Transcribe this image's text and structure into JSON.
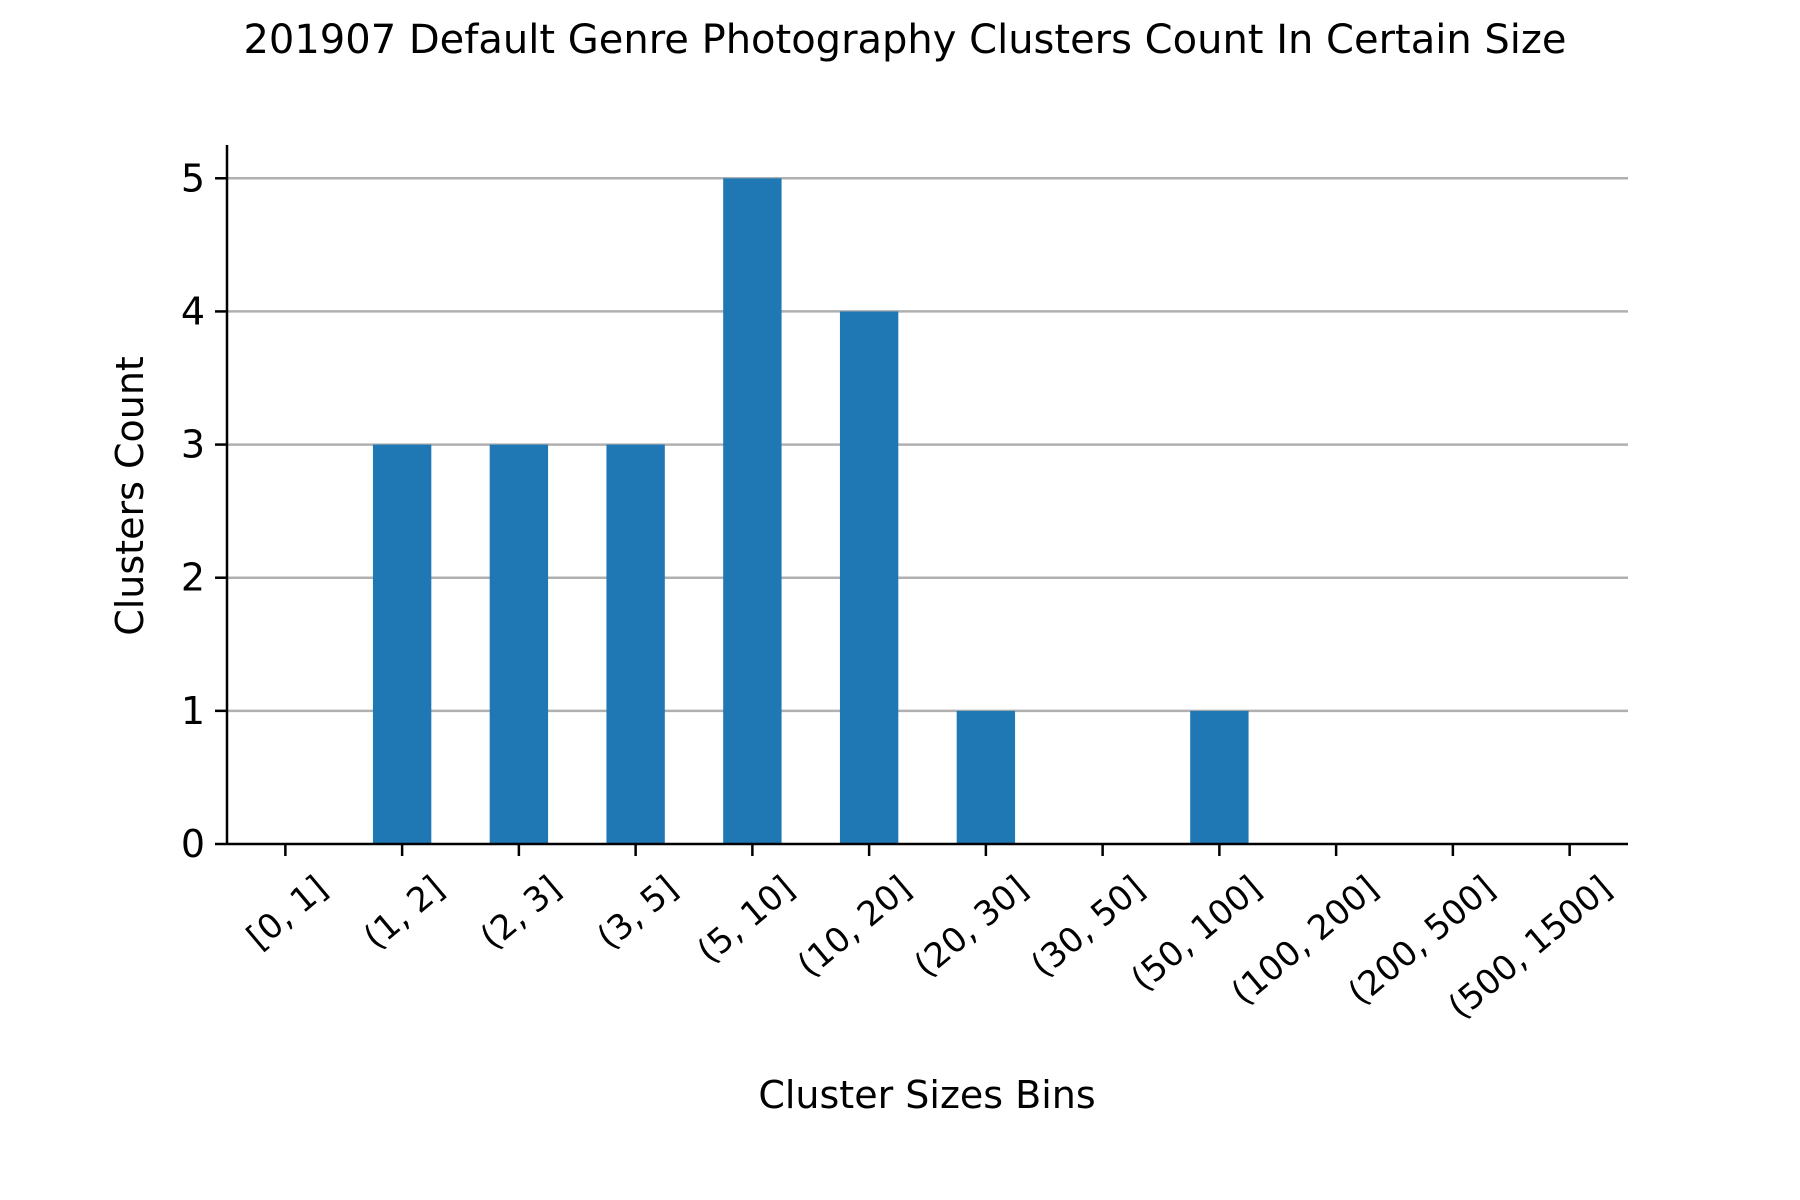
{
  "chart_data": {
    "type": "bar",
    "title": "201907 Default Genre Photography Clusters Count In Certain Size",
    "xlabel": "Cluster Sizes Bins",
    "ylabel": "Clusters Count",
    "categories": [
      "[0, 1]",
      "(1, 2]",
      "(2, 3]",
      "(3, 5]",
      "(5, 10]",
      "(10, 20]",
      "(20, 30]",
      "(30, 50]",
      "(50, 100]",
      "(100, 200]",
      "(200, 500]",
      "(500, 1500]"
    ],
    "values": [
      0,
      3,
      3,
      3,
      5,
      4,
      1,
      0,
      1,
      0,
      0,
      0
    ],
    "yticks": [
      "0",
      "1",
      "2",
      "3",
      "4",
      "5"
    ],
    "ylim": [
      0,
      5.25
    ],
    "grid": "horizontal",
    "legend": "none",
    "bar_color": "#1f77b4",
    "grid_color": "#b0b0b0"
  }
}
